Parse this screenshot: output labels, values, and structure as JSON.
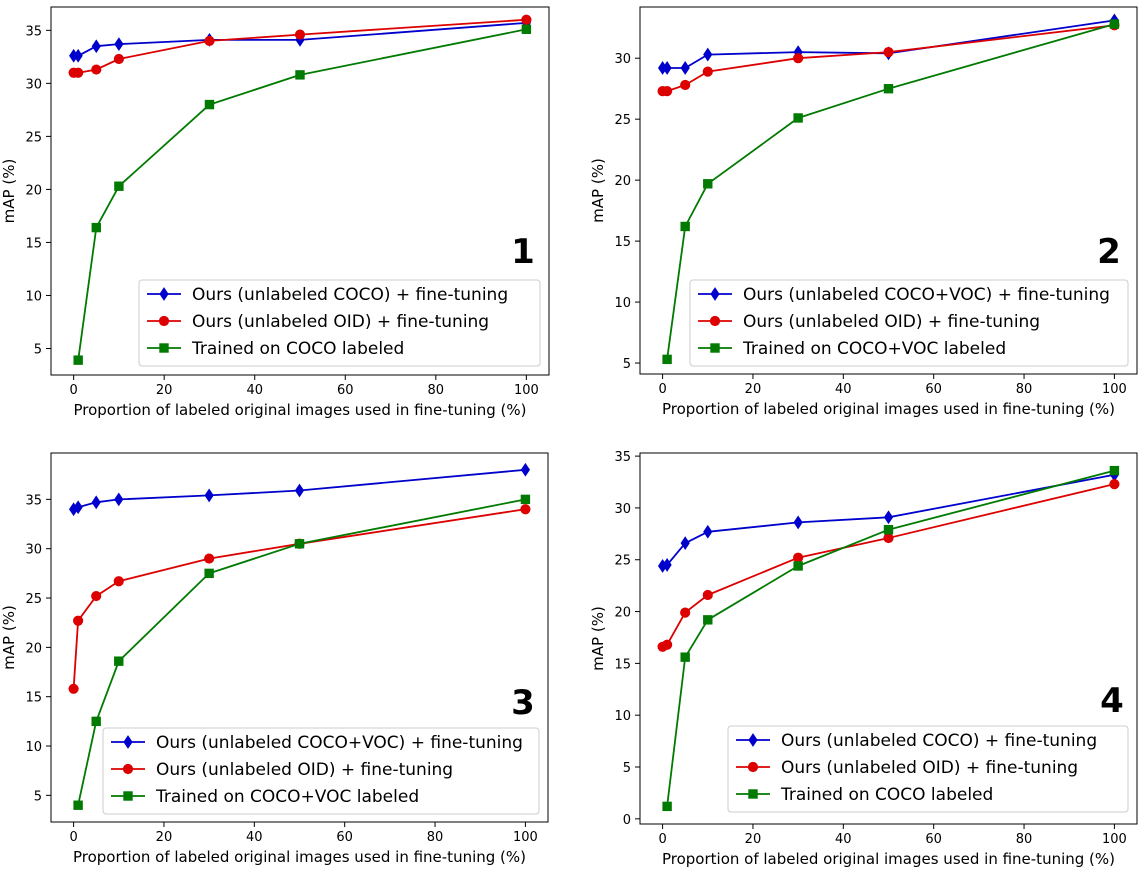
{
  "chart_data": [
    {
      "type": "line",
      "panel_number": "1",
      "xlabel": "Proportion of labeled original images used in fine-tuning (%)",
      "ylabel": "mAP (%)",
      "xlim": [
        -5,
        105
      ],
      "ylim": [
        2.5,
        37.2
      ],
      "xticks": [
        0,
        20,
        40,
        60,
        80,
        100
      ],
      "yticks": [
        5,
        10,
        15,
        20,
        25,
        30,
        35
      ],
      "grid": false,
      "legend_position": "lower-right",
      "series": [
        {
          "name": "Ours (unlabeled COCO) + fine-tuning",
          "color": "#0000cc",
          "marker": "diamond",
          "x": [
            0,
            1,
            5,
            10,
            30,
            50,
            100
          ],
          "y": [
            32.6,
            32.6,
            33.5,
            33.7,
            34.1,
            34.1,
            35.7
          ]
        },
        {
          "name": "Ours (unlabeled OID) + fine-tuning",
          "color": "#dd0000",
          "marker": "circle",
          "x": [
            0,
            1,
            5,
            10,
            30,
            50,
            100
          ],
          "y": [
            31.0,
            31.0,
            31.3,
            32.3,
            34.0,
            34.6,
            36.0
          ]
        },
        {
          "name": "Trained on COCO labeled",
          "color": "#007a00",
          "marker": "square",
          "x": [
            1,
            5,
            10,
            30,
            50,
            100
          ],
          "y": [
            3.9,
            16.4,
            20.3,
            28.0,
            30.8,
            35.1
          ]
        }
      ]
    },
    {
      "type": "line",
      "panel_number": "2",
      "xlabel": "Proportion of labeled original images used in fine-tuning (%)",
      "ylabel": "mAP (%)",
      "xlim": [
        -5,
        105
      ],
      "ylim": [
        4.1,
        34.2
      ],
      "xticks": [
        0,
        20,
        40,
        60,
        80,
        100
      ],
      "yticks": [
        5,
        10,
        15,
        20,
        25,
        30
      ],
      "grid": false,
      "legend_position": "lower-right",
      "series": [
        {
          "name": "Ours (unlabeled COCO+VOC) + fine-tuning",
          "color": "#0000cc",
          "marker": "diamond",
          "x": [
            0,
            1,
            5,
            10,
            30,
            50,
            100
          ],
          "y": [
            29.2,
            29.2,
            29.2,
            30.3,
            30.5,
            30.4,
            33.1
          ]
        },
        {
          "name": "Ours (unlabeled OID) + fine-tuning",
          "color": "#dd0000",
          "marker": "circle",
          "x": [
            0,
            1,
            5,
            10,
            30,
            50,
            100
          ],
          "y": [
            27.3,
            27.3,
            27.8,
            28.9,
            30.0,
            30.5,
            32.7
          ]
        },
        {
          "name": "Trained on COCO+VOC labeled",
          "color": "#007a00",
          "marker": "square",
          "x": [
            1,
            5,
            10,
            30,
            50,
            100
          ],
          "y": [
            5.3,
            16.2,
            19.7,
            25.1,
            27.5,
            32.8
          ]
        }
      ]
    },
    {
      "type": "line",
      "panel_number": "3",
      "xlabel": "Proportion of labeled original images used in fine-tuning (%)",
      "ylabel": "mAP (%)",
      "xlim": [
        -5,
        105
      ],
      "ylim": [
        2.3,
        39.7
      ],
      "xticks": [
        0,
        20,
        40,
        60,
        80,
        100
      ],
      "yticks": [
        5,
        10,
        15,
        20,
        25,
        30,
        35
      ],
      "grid": false,
      "legend_position": "lower-right",
      "series": [
        {
          "name": "Ours (unlabeled COCO+VOC) + fine-tuning",
          "color": "#0000cc",
          "marker": "diamond",
          "x": [
            0,
            1,
            5,
            10,
            30,
            50,
            100
          ],
          "y": [
            34.0,
            34.2,
            34.7,
            35.0,
            35.4,
            35.9,
            38.0
          ]
        },
        {
          "name": "Ours (unlabeled OID) + fine-tuning",
          "color": "#dd0000",
          "marker": "circle",
          "x": [
            0,
            1,
            5,
            10,
            30,
            50,
            100
          ],
          "y": [
            15.8,
            22.7,
            25.2,
            26.7,
            29.0,
            30.5,
            34.0
          ]
        },
        {
          "name": "Trained on COCO+VOC labeled",
          "color": "#007a00",
          "marker": "square",
          "x": [
            1,
            5,
            10,
            30,
            50,
            100
          ],
          "y": [
            4.0,
            12.5,
            18.6,
            27.5,
            30.5,
            35.0
          ]
        }
      ]
    },
    {
      "type": "line",
      "panel_number": "4",
      "xlabel": "Proportion of labeled original images used in fine-tuning (%)",
      "ylabel": "mAP (%)",
      "xlim": [
        -5,
        105
      ],
      "ylim": [
        -0.5,
        35.3
      ],
      "xticks": [
        0,
        20,
        40,
        60,
        80,
        100
      ],
      "yticks": [
        0,
        5,
        10,
        15,
        20,
        25,
        30,
        35
      ],
      "grid": false,
      "legend_position": "lower-right",
      "series": [
        {
          "name": "Ours (unlabeled COCO) + fine-tuning",
          "color": "#0000cc",
          "marker": "diamond",
          "x": [
            0,
            1,
            5,
            10,
            30,
            50,
            100
          ],
          "y": [
            24.4,
            24.5,
            26.6,
            27.7,
            28.6,
            29.1,
            33.2
          ]
        },
        {
          "name": "Ours (unlabeled OID) + fine-tuning",
          "color": "#dd0000",
          "marker": "circle",
          "x": [
            0,
            1,
            5,
            10,
            30,
            50,
            100
          ],
          "y": [
            16.6,
            16.8,
            19.9,
            21.6,
            25.2,
            27.1,
            32.3
          ]
        },
        {
          "name": "Trained on COCO labeled",
          "color": "#007a00",
          "marker": "square",
          "x": [
            1,
            5,
            10,
            30,
            50,
            100
          ],
          "y": [
            1.2,
            15.6,
            19.2,
            24.4,
            27.9,
            33.6
          ]
        }
      ]
    }
  ]
}
